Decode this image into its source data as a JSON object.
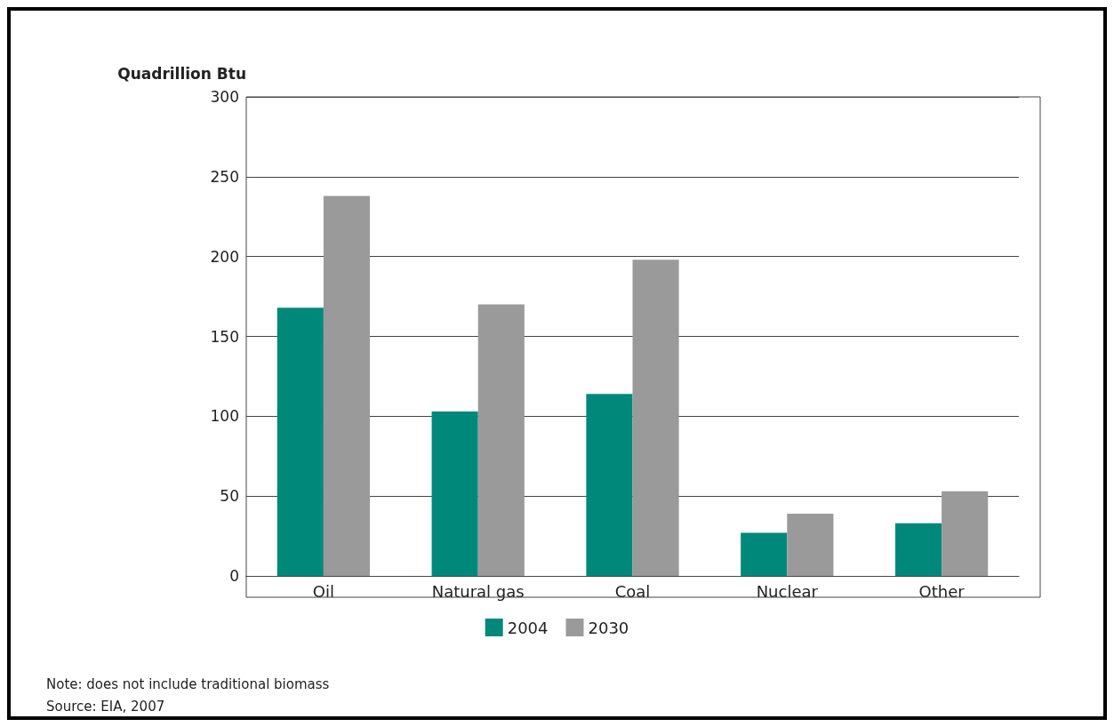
{
  "chart_data": {
    "type": "bar",
    "ylabel": "Quadrillion Btu",
    "categories": [
      "Oil",
      "Natural gas",
      "Coal",
      "Nuclear",
      "Other"
    ],
    "series": [
      {
        "name": "2004",
        "color": "#00897a",
        "values": [
          168,
          103,
          114,
          27,
          33
        ]
      },
      {
        "name": "2030",
        "color": "#9a9a9a",
        "values": [
          238,
          170,
          198,
          39,
          53
        ]
      }
    ],
    "ylim": [
      0,
      300
    ],
    "yticks": [
      0,
      50,
      100,
      150,
      200,
      250,
      300
    ],
    "grid": "y",
    "legend": "bottom",
    "annotations": [
      "Note: does not include traditional biomass",
      "Source: EIA, 2007"
    ]
  }
}
